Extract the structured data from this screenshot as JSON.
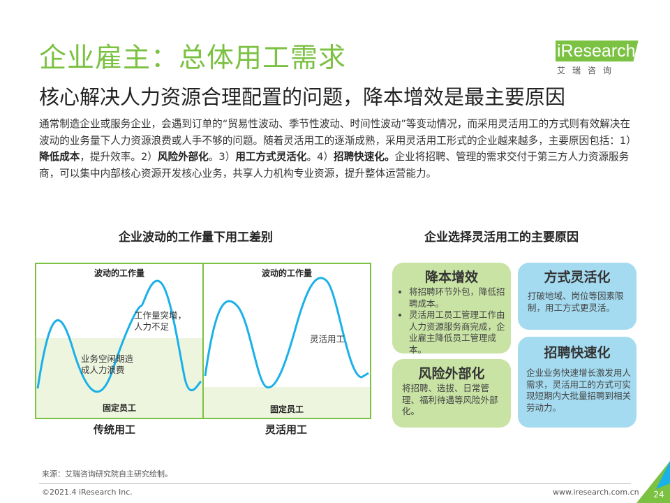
{
  "header": {
    "title": "企业雇主：总体用工需求",
    "subtitle": "核心解决人力资源合理配置的问题，降本增效是最主要原因"
  },
  "logo": {
    "wordmark": "iResearch",
    "chinese": "艾瑞咨询",
    "brand_color": "#7bc142"
  },
  "intro": {
    "p1": "通常制造企业或服务企业，会遇到订单的“贸易性波动、季节性波动、时间性波动”等变动情况，而采用灵活用工的方式则有效解决在波动的业务量下人力资源浪费或人手不够的问题。随着灵活用工的逐渐成熟，采用灵活用工形式的企业越来越多，主要原因包括：1）",
    "b1": "降低成本",
    "p2": "，提升效率。2）",
    "b2": "风险外部化",
    "p3": "。3）",
    "b3": "用工方式灵活化",
    "p4": "。4）",
    "b4": "招聘快速化。",
    "p5": "企业将招聘、管理的需求交付于第三方人力资源服务商，可以集中内部核心资源开发核心业务，共享人力机构专业资源，提升整体运营能力。"
  },
  "left_section": {
    "title": "企业波动的工作量下用工差别",
    "panels": [
      {
        "label": "传统用工",
        "top_label": "波动的工作量",
        "bottom_label": "固定员工",
        "note_peak_1": "工作量突增，",
        "note_peak_2": "人力不足",
        "note_trough_1": "业务空闲期造",
        "note_trough_2": "成人力浪费"
      },
      {
        "label": "灵活用工",
        "top_label": "波动的工作量",
        "bottom_label": "固定员工",
        "note_flex": "灵活用工"
      }
    ]
  },
  "right_section": {
    "title": "企业选择灵活用工的主要原因",
    "boxes": {
      "cost": {
        "title": "降本增效",
        "items": [
          "将招聘环节外包，降低招聘成本。",
          "灵活用工员工管理工作由人力资源服务商完成，企业雇主降低员工管理成本。"
        ]
      },
      "flex": {
        "title": "方式灵活化",
        "text": "打破地域、岗位等因素限制，用工方式更灵活。"
      },
      "risk": {
        "title": "风险外部化",
        "text": "将招聘、选拔、日常管理、福利待遇等风险外部化。"
      },
      "speed": {
        "title": "招聘快速化",
        "text": "企业业务快速增长激发用人需求，灵活用工的方式可实现短期内大批量招聘到相关劳动力。"
      }
    },
    "colors": {
      "green": "#c8e3a4",
      "blue": "#a4dbf0"
    }
  },
  "footer": {
    "source": "来源：艾瑞咨询研究院自主研究绘制。",
    "copyright": "©2021.4 iResearch Inc.",
    "website": "www.iresearch.com.cn",
    "page_number": "24"
  },
  "colors": {
    "accent_green": "#7bc142",
    "wave_blue": "#1ab0e8",
    "fill_light_green": "#eef5df"
  }
}
